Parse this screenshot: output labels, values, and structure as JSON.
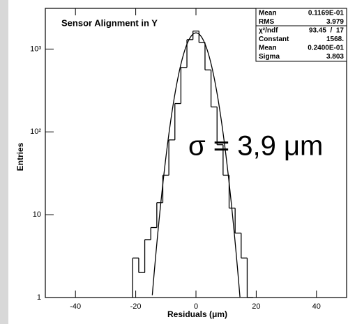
{
  "chart_data": {
    "type": "histogram",
    "title": "Sensor Alignment in Y",
    "x_label": "Residuals (μm)",
    "y_label": "Entries",
    "bins": [
      -21,
      -19,
      -17,
      -15,
      -13,
      -11,
      -9,
      -7,
      -5,
      -3,
      -1,
      1,
      3,
      5,
      7,
      9,
      11,
      13,
      15,
      17,
      19
    ],
    "counts": [
      3,
      2,
      5,
      7,
      14,
      30,
      80,
      220,
      600,
      1300,
      1650,
      1200,
      560,
      200,
      70,
      30,
      12,
      6,
      3,
      1
    ],
    "color": "#000000",
    "xlim": [
      -50,
      50
    ],
    "xticks": [
      -40,
      -20,
      0,
      20,
      40
    ],
    "ylim": [
      1,
      3100
    ],
    "y_log": true,
    "yticks": [
      1,
      10,
      {
        "value": 100,
        "label": "10²"
      },
      {
        "value": 1000,
        "label": "10³"
      }
    ],
    "stats": [
      {
        "name": "Mean",
        "value": 0.01169,
        "label": "0.1169E-01"
      },
      {
        "name": "RMS",
        "value": 3.979,
        "label": "3.979"
      },
      {
        "name": "χ²/ndf",
        "label": "93.45  /  17"
      },
      {
        "name": "Constant",
        "value": 1568,
        "label": "1568."
      },
      {
        "name": "Mean",
        "value": 0.024,
        "label": "0.2400E-01"
      },
      {
        "name": "Sigma",
        "value": 3.803,
        "label": "3.803"
      }
    ],
    "annotation": "σ = 3,9 μm",
    "annotation_color": "#ff2020"
  }
}
